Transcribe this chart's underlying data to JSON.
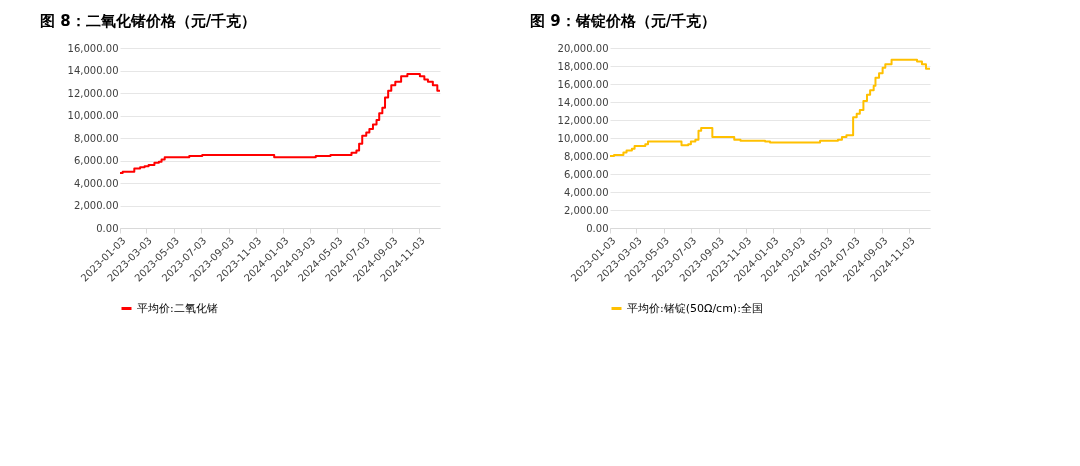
{
  "chart_data": [
    {
      "type": "step",
      "title": "图 8：二氧化锗价格（元/千克）",
      "legend": "bottom",
      "grid": "y",
      "marker": "none",
      "line_style": "solid",
      "xlim": [
        "2023-01-03",
        "2024-12-19"
      ],
      "xticks": [
        "2023-01-03",
        "2023-03-03",
        "2023-05-03",
        "2023-07-03",
        "2023-09-03",
        "2023-11-03",
        "2024-01-03",
        "2024-03-03",
        "2024-05-03",
        "2024-07-03",
        "2024-09-03",
        "2024-11-03"
      ],
      "ylim": [
        0,
        16000
      ],
      "yticks": [
        {
          "value": 0,
          "label": "0.00"
        },
        {
          "value": 2000,
          "label": "2,000.00"
        },
        {
          "value": 4000,
          "label": "4,000.00"
        },
        {
          "value": 6000,
          "label": "6,000.00"
        },
        {
          "value": 8000,
          "label": "8,000.00"
        },
        {
          "value": 10000,
          "label": "10,000.00"
        },
        {
          "value": 12000,
          "label": "12,000.00"
        },
        {
          "value": 14000,
          "label": "14,000.00"
        },
        {
          "value": 16000,
          "label": "16,000.00"
        }
      ],
      "series": [
        {
          "name": "平均价:二氧化锗",
          "color": "#ff0000",
          "x": [
            "2023-01-03",
            "2023-01-09",
            "2023-02-04",
            "2023-02-17",
            "2023-02-27",
            "2023-03-08",
            "2023-03-21",
            "2023-03-31",
            "2023-04-06",
            "2023-04-13",
            "2023-06-07",
            "2023-07-06",
            "2023-12-14",
            "2024-03-16",
            "2024-04-18",
            "2024-06-04",
            "2024-06-15",
            "2024-06-21",
            "2024-06-28",
            "2024-07-07",
            "2024-07-14",
            "2024-07-22",
            "2024-07-30",
            "2024-08-05",
            "2024-08-12",
            "2024-08-18",
            "2024-08-25",
            "2024-09-01",
            "2024-09-10",
            "2024-09-23",
            "2024-10-07",
            "2024-11-04",
            "2024-11-14",
            "2024-11-22",
            "2024-12-03",
            "2024-12-13",
            "2024-12-19"
          ],
          "values": [
            4900,
            5000,
            5300,
            5400,
            5500,
            5600,
            5800,
            5900,
            6100,
            6300,
            6400,
            6500,
            6300,
            6400,
            6500,
            6700,
            6900,
            7500,
            8200,
            8500,
            8800,
            9200,
            9600,
            10200,
            10700,
            11600,
            12200,
            12700,
            13000,
            13500,
            13700,
            13500,
            13200,
            13000,
            12700,
            12200,
            12200
          ]
        }
      ]
    },
    {
      "type": "step",
      "title": "图 9：锗锭价格（元/千克）",
      "legend": "bottom",
      "grid": "y",
      "marker": "none",
      "line_style": "solid",
      "xlim": [
        "2023-01-03",
        "2024-12-19"
      ],
      "xticks": [
        "2023-01-03",
        "2023-03-03",
        "2023-05-03",
        "2023-07-03",
        "2023-09-03",
        "2023-11-03",
        "2024-01-03",
        "2024-03-03",
        "2024-05-03",
        "2024-07-03",
        "2024-09-03",
        "2024-11-03"
      ],
      "ylim": [
        0,
        20000
      ],
      "yticks": [
        {
          "value": 0,
          "label": "0.00"
        },
        {
          "value": 2000,
          "label": "2,000.00"
        },
        {
          "value": 4000,
          "label": "4,000.00"
        },
        {
          "value": 6000,
          "label": "6,000.00"
        },
        {
          "value": 8000,
          "label": "8,000.00"
        },
        {
          "value": 10000,
          "label": "10,000.00"
        },
        {
          "value": 12000,
          "label": "12,000.00"
        },
        {
          "value": 14000,
          "label": "14,000.00"
        },
        {
          "value": 16000,
          "label": "16,000.00"
        },
        {
          "value": 18000,
          "label": "18,000.00"
        },
        {
          "value": 20000,
          "label": "20,000.00"
        }
      ],
      "series": [
        {
          "name": "平均价:锗锭(50Ω/cm):全国",
          "color": "#ffc000",
          "x": [
            "2023-01-03",
            "2023-01-12",
            "2023-02-02",
            "2023-02-09",
            "2023-02-21",
            "2023-02-27",
            "2023-03-23",
            "2023-03-29",
            "2023-06-12",
            "2023-06-27",
            "2023-07-03",
            "2023-07-13",
            "2023-07-20",
            "2023-07-26",
            "2023-08-20",
            "2023-10-08",
            "2023-10-22",
            "2023-12-16",
            "2023-12-27",
            "2024-04-17",
            "2024-05-27",
            "2024-06-05",
            "2024-06-15",
            "2024-06-30",
            "2024-07-08",
            "2024-07-15",
            "2024-07-23",
            "2024-07-31",
            "2024-08-07",
            "2024-08-15",
            "2024-08-19",
            "2024-08-27",
            "2024-09-04",
            "2024-09-10",
            "2024-09-24",
            "2024-11-20",
            "2024-12-01",
            "2024-12-10",
            "2024-12-19"
          ],
          "values": [
            8000,
            8100,
            8400,
            8600,
            8800,
            9100,
            9300,
            9600,
            9200,
            9300,
            9600,
            9800,
            10800,
            11100,
            10100,
            9800,
            9700,
            9600,
            9500,
            9700,
            9800,
            10100,
            10300,
            12300,
            12700,
            13100,
            14100,
            14800,
            15300,
            15800,
            16700,
            17200,
            17800,
            18200,
            18700,
            18500,
            18200,
            17700,
            17700
          ]
        }
      ]
    }
  ]
}
